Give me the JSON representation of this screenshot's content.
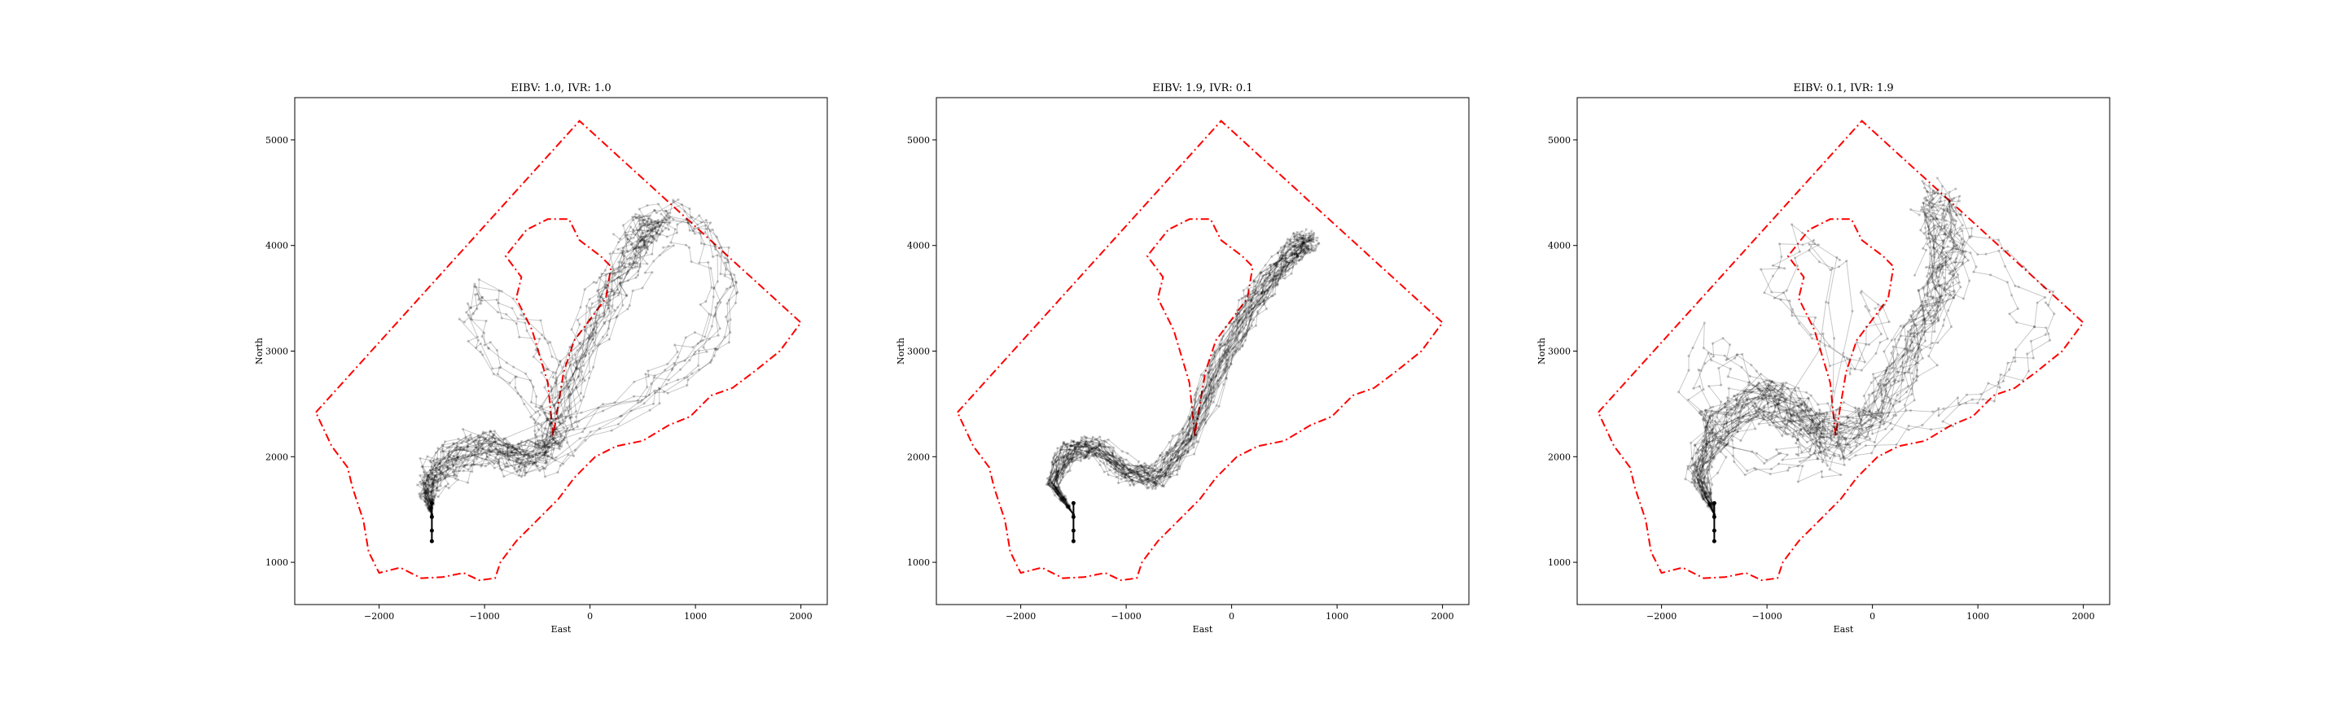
{
  "figure": {
    "background": "#ffffff",
    "boundary_color": "#ff0000",
    "trajectory_color": "#000000"
  },
  "chart_data": [
    {
      "type": "line",
      "title": "EIBV: 1.0, IVR: 1.0",
      "xlabel": "East",
      "ylabel": "North",
      "xlim": [
        -2800,
        2250
      ],
      "ylim": [
        600,
        5400
      ],
      "xticks": [
        -2000,
        -1000,
        0,
        1000,
        2000
      ],
      "yticks": [
        1000,
        2000,
        3000,
        4000,
        5000
      ],
      "xtick_labels": [
        "−2000",
        "−1000",
        "0",
        "1000",
        "2000"
      ],
      "ytick_labels": [
        "1000",
        "2000",
        "3000",
        "4000",
        "5000"
      ],
      "start_path": {
        "x": [
          -1500,
          -1500,
          -1500,
          -1500
        ],
        "y": [
          1200,
          1300,
          1430,
          1560
        ]
      },
      "trajectory_spread": 260,
      "trajectory_count": 32,
      "centerline": {
        "x": [
          -1500,
          -1550,
          -1400,
          -1000,
          -700,
          -420,
          -300,
          -100,
          150,
          380,
          560,
          650
        ],
        "y": [
          1450,
          1680,
          1900,
          2080,
          1950,
          2000,
          2300,
          2850,
          3400,
          3800,
          4050,
          4200
        ]
      },
      "extra_lobes": [
        {
          "x": [
            -380,
            -650,
            -1000,
            -1200,
            -1100,
            -700,
            -420,
            -380
          ],
          "y": [
            2200,
            2600,
            2950,
            3300,
            3600,
            3300,
            2900,
            2400
          ]
        },
        {
          "x": [
            400,
            800,
            1150,
            1300,
            1100,
            800,
            500,
            300
          ],
          "y": [
            2500,
            2800,
            3100,
            3600,
            4100,
            4300,
            4200,
            3900
          ]
        }
      ]
    },
    {
      "type": "line",
      "title": "EIBV: 1.9, IVR: 0.1",
      "xlabel": "East",
      "ylabel": "North",
      "xlim": [
        -2800,
        2250
      ],
      "ylim": [
        600,
        5400
      ],
      "xticks": [
        -2000,
        -1000,
        0,
        1000,
        2000
      ],
      "yticks": [
        1000,
        2000,
        3000,
        4000,
        5000
      ],
      "xtick_labels": [
        "−2000",
        "−1000",
        "0",
        "1000",
        "2000"
      ],
      "ytick_labels": [
        "1000",
        "2000",
        "3000",
        "4000",
        "5000"
      ],
      "start_path": {
        "x": [
          -1500,
          -1500,
          -1500,
          -1500
        ],
        "y": [
          1200,
          1300,
          1430,
          1560
        ]
      },
      "trajectory_spread": 170,
      "trajectory_count": 32,
      "centerline": {
        "x": [
          -1500,
          -1700,
          -1550,
          -1300,
          -1000,
          -700,
          -400,
          -100,
          200,
          450,
          650,
          750
        ],
        "y": [
          1450,
          1750,
          2050,
          2100,
          1850,
          1800,
          2200,
          2900,
          3450,
          3800,
          4000,
          4050
        ]
      },
      "extra_lobes": []
    },
    {
      "type": "line",
      "title": "EIBV: 0.1, IVR: 1.9",
      "xlabel": "East",
      "ylabel": "North",
      "xlim": [
        -2800,
        2250
      ],
      "ylim": [
        600,
        5400
      ],
      "xticks": [
        -2000,
        -1000,
        0,
        1000,
        2000
      ],
      "yticks": [
        1000,
        2000,
        3000,
        4000,
        5000
      ],
      "xtick_labels": [
        "−2000",
        "−1000",
        "0",
        "1000",
        "2000"
      ],
      "ytick_labels": [
        "1000",
        "2000",
        "3000",
        "4000",
        "5000"
      ],
      "start_path": {
        "x": [
          -1500,
          -1500,
          -1500,
          -1500
        ],
        "y": [
          1200,
          1300,
          1430,
          1560
        ]
      },
      "trajectory_spread": 330,
      "trajectory_count": 34,
      "centerline": {
        "x": [
          -1500,
          -1650,
          -1450,
          -1000,
          -700,
          -350,
          0,
          300,
          550,
          700,
          650,
          550
        ],
        "y": [
          1450,
          1850,
          2300,
          2600,
          2350,
          2150,
          2350,
          2900,
          3400,
          3800,
          4250,
          4500
        ]
      },
      "extra_lobes": [
        {
          "x": [
            -400,
            -800,
            -1200,
            -1500,
            -1650,
            -1300,
            -800,
            -500,
            -400
          ],
          "y": [
            2200,
            2500,
            2800,
            3100,
            2500,
            2000,
            1900,
            2000,
            2200
          ]
        },
        {
          "x": [
            -200,
            -600,
            -900,
            -500,
            -100,
            200,
            0
          ],
          "y": [
            3900,
            4100,
            3700,
            3300,
            2900,
            3300,
            3700
          ]
        },
        {
          "x": [
            500,
            900,
            1300,
            1600,
            1500,
            1100,
            700,
            500
          ],
          "y": [
            2400,
            2600,
            2900,
            3300,
            3600,
            4000,
            4200,
            3800
          ]
        }
      ]
    }
  ]
}
